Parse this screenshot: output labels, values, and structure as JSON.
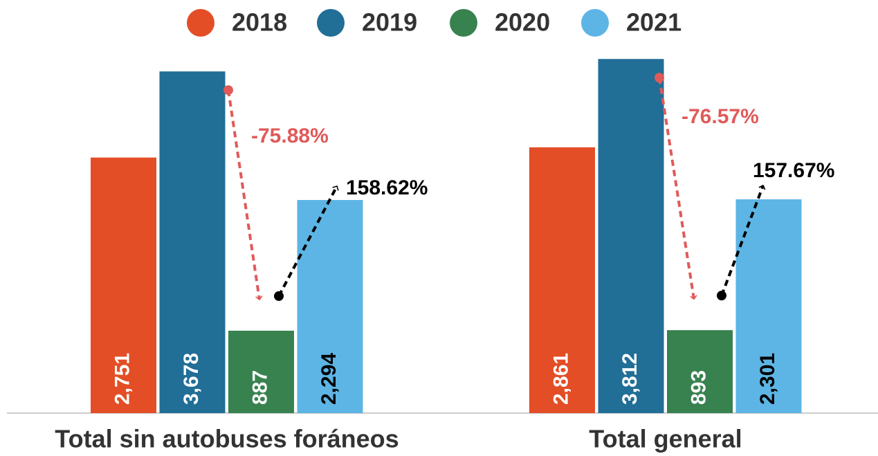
{
  "chart_data": {
    "type": "bar",
    "categories": [
      "Total sin autobuses foráneos",
      "Total general"
    ],
    "series": [
      {
        "name": "2018",
        "color": "#e34e26",
        "values": [
          2751,
          2861
        ],
        "value_labels": [
          "2,751",
          "2,861"
        ]
      },
      {
        "name": "2019",
        "color": "#216e96",
        "values": [
          3678,
          3812
        ],
        "value_labels": [
          "3,678",
          "3,812"
        ]
      },
      {
        "name": "2020",
        "color": "#388250",
        "values": [
          887,
          893
        ],
        "value_labels": [
          "887",
          "893"
        ]
      },
      {
        "name": "2021",
        "color": "#5db5e5",
        "values": [
          2294,
          2301
        ],
        "value_labels": [
          "2,294",
          "2,301"
        ]
      }
    ],
    "annotations": [
      "-75.88%",
      "158.62%",
      "-76.57%",
      "157.67%"
    ],
    "ylim": [
      0,
      4000
    ]
  }
}
